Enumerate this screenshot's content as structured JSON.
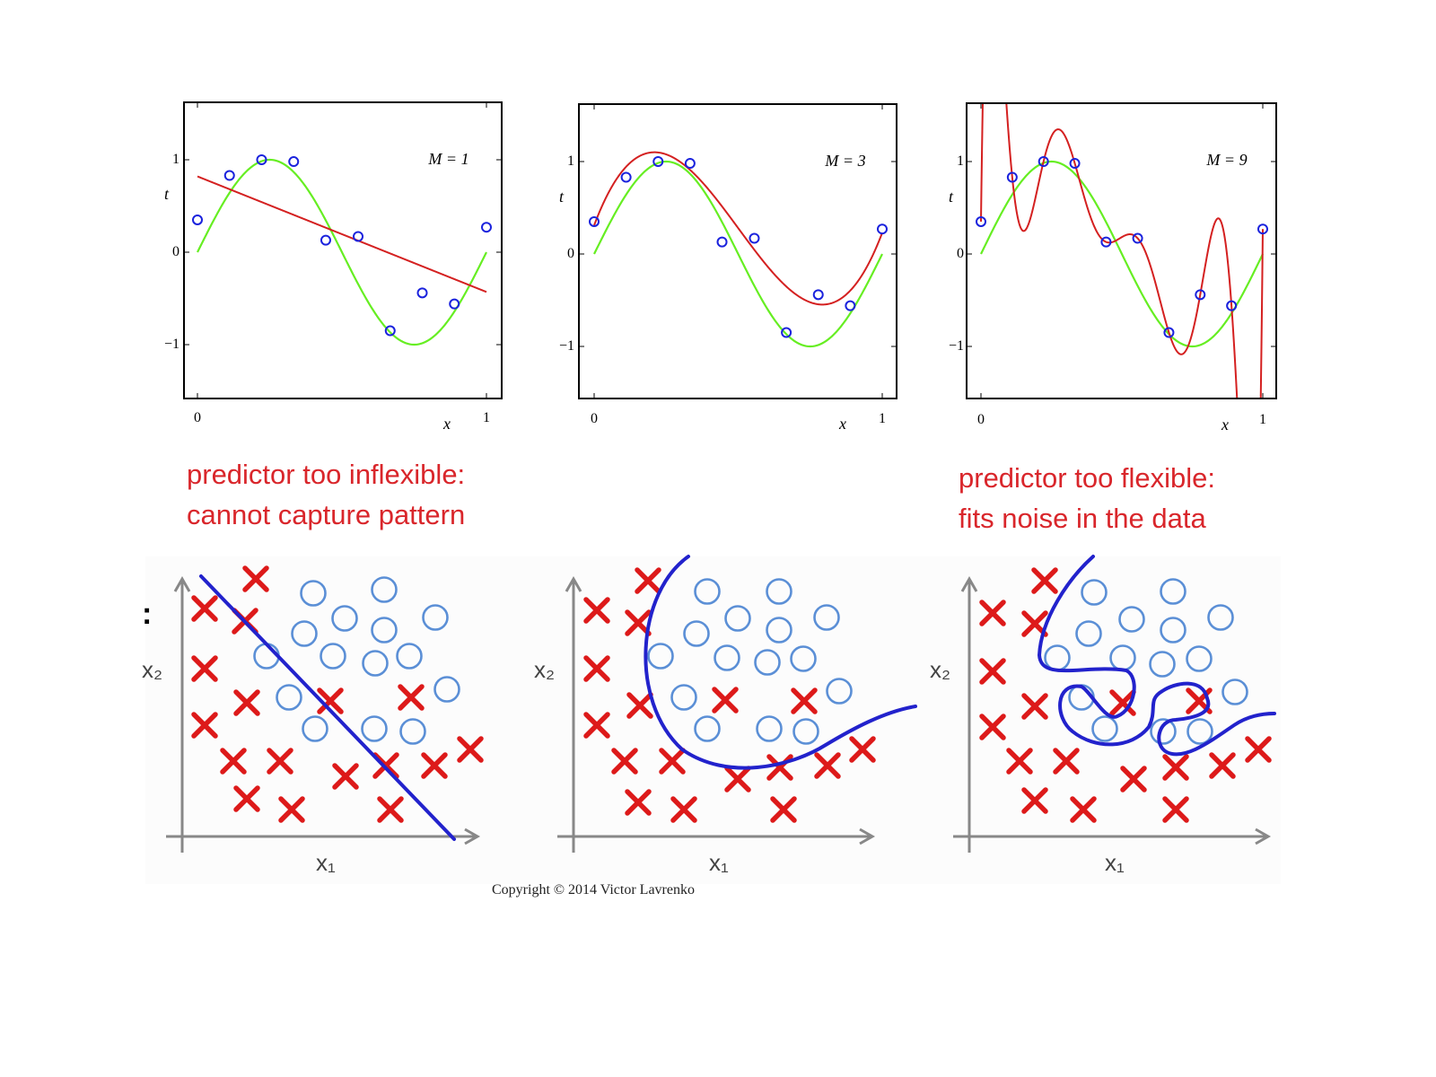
{
  "colors": {
    "true_curve": "#66ee22",
    "fit_curve": "#d42020",
    "data_point": "#1a22dd",
    "cross": "#dd1a1a",
    "circle": "#5b8fd6",
    "boundary": "#2222cc",
    "axis_gray": "#888888",
    "caption": "#d9262b"
  },
  "chart_data": [
    {
      "type": "line",
      "title": "M = 1",
      "xlabel": "x",
      "ylabel": "t",
      "xlim": [
        0,
        1
      ],
      "ylim": [
        -1.6,
        1.6
      ],
      "xticks": [
        "0",
        "1"
      ],
      "yticks": [
        "1",
        "0",
        "−1"
      ],
      "points": {
        "x": [
          0,
          0.111,
          0.222,
          0.333,
          0.444,
          0.556,
          0.667,
          0.778,
          0.889,
          1.0
        ],
        "t": [
          0.35,
          0.83,
          1.0,
          0.98,
          0.13,
          0.17,
          -0.85,
          -0.44,
          -0.56,
          0.27
        ]
      },
      "true_curve": "sin(2*pi*x)",
      "fit": {
        "degree": 1,
        "coeffs": [
          0.82,
          -1.25
        ]
      }
    },
    {
      "type": "line",
      "title": "M = 3",
      "xlabel": "x",
      "ylabel": "t",
      "xlim": [
        0,
        1
      ],
      "ylim": [
        -1.6,
        1.6
      ],
      "xticks": [
        "0",
        "1"
      ],
      "yticks": [
        "1",
        "0",
        "−1"
      ],
      "points": {
        "x": [
          0,
          0.111,
          0.222,
          0.333,
          0.444,
          0.556,
          0.667,
          0.778,
          0.889,
          1.0
        ],
        "t": [
          0.35,
          0.83,
          1.0,
          0.98,
          0.13,
          0.17,
          -0.85,
          -0.44,
          -0.56,
          0.27
        ]
      },
      "true_curve": "sin(2*pi*x)",
      "fit": {
        "degree": 3,
        "coeffs": [
          0.31,
          8.28,
          -25.0,
          16.64
        ]
      }
    },
    {
      "type": "line",
      "title": "M = 9",
      "xlabel": "x",
      "ylabel": "t",
      "xlim": [
        0,
        1
      ],
      "ylim": [
        -1.6,
        1.6
      ],
      "xticks": [
        "0",
        "1"
      ],
      "yticks": [
        "1",
        "0",
        "−1"
      ],
      "points": {
        "x": [
          0,
          0.111,
          0.222,
          0.333,
          0.444,
          0.556,
          0.667,
          0.778,
          0.889,
          1.0
        ],
        "t": [
          0.35,
          0.83,
          1.0,
          0.98,
          0.13,
          0.17,
          -0.85,
          -0.44,
          -0.56,
          0.27
        ]
      },
      "true_curve": "sin(2*pi*x)",
      "fit": {
        "degree": 9,
        "interpolating": true
      }
    },
    {
      "type": "scatter",
      "xlabel": "x₁",
      "ylabel": "x₂",
      "boundary": "linear",
      "classes": [
        "cross",
        "circle"
      ]
    },
    {
      "type": "scatter",
      "xlabel": "x₁",
      "ylabel": "x₂",
      "boundary": "smooth curve",
      "classes": [
        "cross",
        "circle"
      ]
    },
    {
      "type": "scatter",
      "xlabel": "x₁",
      "ylabel": "x₂",
      "boundary": "complex, wraps around individual points",
      "classes": [
        "cross",
        "circle"
      ]
    }
  ],
  "captions": {
    "left_line1": "predictor too inflexible:",
    "left_line2": "cannot capture pattern",
    "right_line1": "predictor too flexible:",
    "right_line2": "fits noise in the data"
  },
  "copyright": "Copyright © 2014 Victor Lavrenko"
}
